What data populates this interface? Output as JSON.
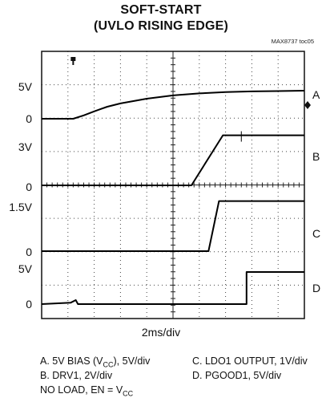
{
  "chart_data": {
    "type": "line",
    "title": "SOFT-START",
    "subtitle": "(UVLO RISING EDGE)",
    "figure_tag": "MAX8737 toc05",
    "x_scale_label": "2ms/div",
    "x_divisions": 10,
    "x_unit_ms_per_div": 2,
    "grid": true,
    "y_labels": [
      {
        "text": "5V",
        "trace": "A"
      },
      {
        "text": "0",
        "trace": "A"
      },
      {
        "text": "3V",
        "trace": "B"
      },
      {
        "text": "0",
        "trace": "B"
      },
      {
        "text": "1.5V",
        "trace": "C"
      },
      {
        "text": "0",
        "trace": "C"
      },
      {
        "text": "5V",
        "trace": "D"
      },
      {
        "text": "0",
        "trace": "D"
      }
    ],
    "series": [
      {
        "name": "A",
        "volts_per_div": 5,
        "x_div": [
          0,
          1.2,
          1.6,
          2,
          2.5,
          3,
          4,
          5,
          6,
          7,
          8,
          9,
          10
        ],
        "y_volts": [
          0,
          0,
          0.5,
          1.1,
          1.8,
          2.3,
          3.0,
          3.5,
          3.8,
          4.0,
          4.1,
          4.15,
          4.2
        ]
      },
      {
        "name": "B",
        "volts_per_div": 2,
        "x_div": [
          0,
          5.7,
          6.9,
          10
        ],
        "y_volts": [
          0,
          0,
          3.0,
          3.0
        ]
      },
      {
        "name": "C",
        "volts_per_div": 1,
        "x_div": [
          0,
          6.35,
          6.75,
          10
        ],
        "y_volts": [
          0,
          0,
          1.5,
          1.5
        ]
      },
      {
        "name": "D",
        "volts_per_div": 5,
        "x_div": [
          0,
          1.1,
          1.3,
          1.38,
          7.8,
          7.8,
          10
        ],
        "y_volts": [
          0,
          0.2,
          0.6,
          0,
          0,
          4.8,
          4.8
        ]
      }
    ]
  },
  "legend": {
    "a_main": "A. 5V BIAS (V",
    "a_sub": "CC",
    "a_end": "), 5V/div",
    "b": "B. DRV1, 2V/div",
    "c": "C. LDO1 OUTPUT, 1V/div",
    "d": "D. PGOOD1, 5V/div",
    "n_main": "NO LOAD, EN = V",
    "n_sub": "CC"
  }
}
